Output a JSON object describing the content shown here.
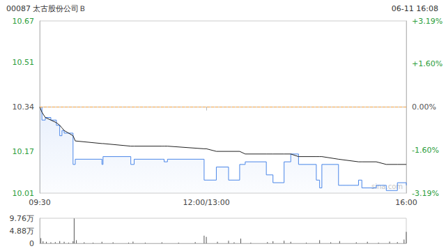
{
  "chart_data": [
    {
      "type": "line",
      "title": "00087 太古股份公司Ｂ",
      "subtitle": "06-11 16:08",
      "annotations": [
        "sina.com"
      ],
      "x": [
        0,
        2,
        5,
        10,
        15,
        18,
        20,
        22,
        30,
        32,
        56,
        57,
        82,
        85,
        110,
        112,
        115,
        148,
        150,
        159,
        170,
        180,
        185,
        204,
        210,
        220,
        226,
        233,
        249,
        252,
        254,
        269,
        287,
        290,
        303,
        312,
        322,
        330
      ],
      "series": [
        {
          "color": "#4a86e8",
          "line_style": "step",
          "values": [
            10.34,
            10.29,
            10.3,
            10.29,
            10.27,
            10.23,
            10.25,
            10.24,
            10.12,
            10.14,
            10.12,
            10.15,
            10.12,
            10.14,
            10.14,
            10.13,
            10.14,
            10.06,
            10.06,
            10.11,
            10.06,
            10.12,
            10.13,
            10.08,
            10.05,
            10.13,
            10.16,
            10.12,
            10.06,
            10.03,
            10.12,
            10.04,
            10.06,
            10.03,
            10.04,
            10.02,
            10.05,
            10.04
          ]
        },
        {
          "color": "#222222",
          "line_style": "solid",
          "values": [
            10.34,
            10.32,
            10.3,
            10.29,
            10.28,
            10.27,
            10.26,
            10.25,
            10.23,
            10.21,
            10.2,
            10.2,
            10.19,
            10.19,
            10.19,
            10.19,
            10.19,
            10.18,
            10.18,
            10.17,
            10.17,
            10.17,
            10.16,
            10.16,
            10.16,
            10.16,
            10.16,
            10.15,
            10.15,
            10.15,
            10.15,
            10.14,
            10.13,
            10.13,
            10.13,
            10.12,
            10.12,
            10.12
          ]
        }
      ],
      "reference_line": {
        "value": 10.34,
        "color": "#f0a040",
        "line_style": "dashed"
      },
      "xlim": [
        0,
        330
      ],
      "xticks": [
        {
          "value": 0,
          "label": "09:30"
        },
        {
          "value": 150,
          "label": "12:00/13:00"
        },
        {
          "value": 330,
          "label": "16:00"
        }
      ],
      "ylim": [
        10.01,
        10.67
      ],
      "yticks": [
        10.01,
        10.17,
        10.34,
        10.51,
        10.67
      ],
      "y2lim": [
        -3.19,
        3.19
      ],
      "y2ticks": [
        {
          "value": -3.19,
          "label": "-3.19%"
        },
        {
          "value": -1.6,
          "label": "-1.60%"
        },
        {
          "value": 0,
          "label": "0.00%"
        },
        {
          "value": 1.6,
          "label": "+1.60%"
        },
        {
          "value": 3.19,
          "label": "+3.19%"
        }
      ],
      "grid": false
    },
    {
      "type": "bar",
      "color": "#555555",
      "x": [
        1,
        3,
        6,
        10,
        14,
        18,
        22,
        26,
        30,
        31,
        33,
        40,
        48,
        56,
        66,
        80,
        84,
        95,
        110,
        125,
        140,
        148,
        150,
        160,
        170,
        175,
        181,
        190,
        205,
        210,
        220,
        226,
        240,
        252,
        262,
        270,
        285,
        295,
        305,
        315,
        322,
        328,
        330
      ],
      "values": [
        2.0,
        0.8,
        0.6,
        0.4,
        0.5,
        0.9,
        0.6,
        0.3,
        0.8,
        9.7,
        1.2,
        0.4,
        0.3,
        0.6,
        0.4,
        0.3,
        0.7,
        0.3,
        0.4,
        0.3,
        0.5,
        3.0,
        2.5,
        0.6,
        1.0,
        0.4,
        1.8,
        0.3,
        0.5,
        0.8,
        1.0,
        0.6,
        0.3,
        1.2,
        0.4,
        0.9,
        0.4,
        0.6,
        0.3,
        0.7,
        0.5,
        1.5,
        4.5
      ],
      "xlim": [
        0,
        330
      ],
      "ylim": [
        0,
        9.76
      ],
      "yticks": [
        0,
        {
          "value": 4.88,
          "label": "4.88万"
        },
        {
          "value": 9.76,
          "label": "9.76万"
        }
      ],
      "tick_labels": "y",
      "grid": false
    }
  ]
}
